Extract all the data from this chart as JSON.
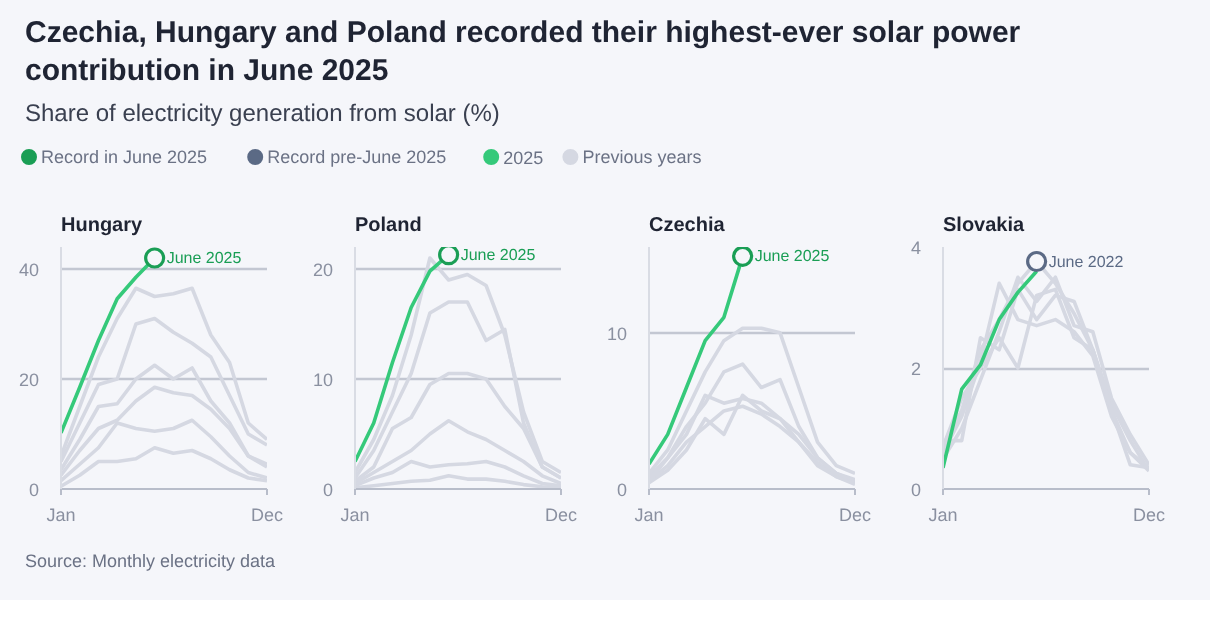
{
  "chart_data": [
    {
      "type": "other",
      "title": "Czechia, Hungary and Poland recorded their highest-ever solar power contribution in June 2025",
      "subtitle": "Share of electricity generation from solar (%)",
      "annotations": [
        "Source: Monthly electricity data"
      ]
    },
    {
      "type": "line",
      "title": "Hungary",
      "categories": [
        "Jan",
        null,
        null,
        null,
        null,
        null,
        null,
        null,
        null,
        null,
        null,
        "Dec"
      ],
      "ylim": [
        0,
        44
      ],
      "yticks": [
        0,
        20,
        40
      ],
      "grid": "y",
      "legend": "top",
      "marker": "none",
      "line_style": "solid",
      "annotations": [
        "June 2025"
      ],
      "series": [
        {
          "name": "Record in June 2025",
          "type": "scatter",
          "marker": "circle",
          "color": "#1a9e55",
          "values": [
            null,
            null,
            null,
            null,
            null,
            42,
            null,
            null,
            null,
            null,
            null,
            null
          ]
        },
        {
          "name": "2025",
          "color": "#35c97a",
          "values": [
            10.2,
            18.5,
            27,
            34.6,
            38.5,
            42,
            null,
            null,
            null,
            null,
            null,
            null
          ]
        },
        {
          "name": "Previous years",
          "color": "#d5d8e2",
          "values": [
            6,
            15,
            24,
            31,
            36.5,
            35,
            35.5,
            36.5,
            28,
            23,
            12,
            9
          ]
        },
        {
          "color": "#d5d8e2",
          "values": [
            5,
            12,
            19,
            20,
            30,
            31,
            28.5,
            26.5,
            24,
            17,
            10,
            8
          ]
        },
        {
          "color": "#d5d8e2",
          "values": [
            3.5,
            9,
            15,
            15.5,
            20,
            22.5,
            20,
            22,
            16,
            12,
            6,
            4.5
          ]
        },
        {
          "color": "#d5d8e2",
          "values": [
            2.5,
            7,
            11,
            12.5,
            16,
            18.5,
            17.5,
            17,
            14.5,
            11,
            6,
            4
          ]
        },
        {
          "color": "#d5d8e2",
          "values": [
            1.5,
            4.5,
            7.5,
            12,
            11,
            10.5,
            11,
            12.5,
            9.5,
            6,
            3,
            2
          ]
        },
        {
          "color": "#d5d8e2",
          "values": [
            0.5,
            2.5,
            5,
            5,
            5.5,
            7.5,
            6.5,
            7,
            5.5,
            3.5,
            2,
            1.5
          ]
        }
      ]
    },
    {
      "type": "line",
      "title": "Poland",
      "categories": [
        "Jan",
        null,
        null,
        null,
        null,
        null,
        null,
        null,
        null,
        null,
        null,
        "Dec"
      ],
      "ylim": [
        0,
        22
      ],
      "yticks": [
        0,
        10,
        20
      ],
      "grid": "y",
      "legend": "top",
      "marker": "none",
      "line_style": "solid",
      "annotations": [
        "June 2025"
      ],
      "series": [
        {
          "name": "Record in June 2025",
          "type": "scatter",
          "marker": "circle",
          "color": "#1a9e55",
          "values": [
            null,
            null,
            null,
            null,
            null,
            21.3,
            null,
            null,
            null,
            null,
            null,
            null
          ]
        },
        {
          "name": "2025",
          "color": "#35c97a",
          "values": [
            2.5,
            6,
            11.5,
            16.5,
            19.8,
            21.3,
            null,
            null,
            null,
            null,
            null,
            null
          ]
        },
        {
          "name": "Previous years",
          "color": "#d5d8e2",
          "values": [
            1.5,
            4.5,
            8.5,
            14,
            21,
            19,
            19.5,
            18.5,
            14,
            7,
            2.5,
            1.5
          ]
        },
        {
          "color": "#d5d8e2",
          "values": [
            1,
            3.5,
            7,
            10.5,
            16,
            17,
            17,
            13.5,
            14.5,
            6,
            2,
            1
          ]
        },
        {
          "color": "#d5d8e2",
          "values": [
            0.7,
            2,
            5.5,
            6.5,
            9.5,
            10.5,
            10.5,
            10,
            7.5,
            5.5,
            2,
            1
          ]
        },
        {
          "color": "#d5d8e2",
          "values": [
            0.5,
            1.5,
            2.5,
            3.5,
            5,
            6.2,
            5.2,
            4.5,
            3.5,
            2.5,
            1.2,
            0.5
          ]
        },
        {
          "color": "#d5d8e2",
          "values": [
            0.3,
            1,
            1.5,
            2.5,
            2,
            2.2,
            2.3,
            2.5,
            2,
            1.2,
            0.5,
            0.3
          ]
        },
        {
          "color": "#d5d8e2",
          "values": [
            0.1,
            0.3,
            0.5,
            0.7,
            0.8,
            1.2,
            0.9,
            0.9,
            0.7,
            0.4,
            0.2,
            0.1
          ]
        }
      ]
    },
    {
      "type": "line",
      "title": "Czechia",
      "categories": [
        "Jan",
        null,
        null,
        null,
        null,
        null,
        null,
        null,
        null,
        null,
        null,
        "Dec"
      ],
      "ylim": [
        0,
        15.5
      ],
      "yticks": [
        0,
        10
      ],
      "grid": "y",
      "legend": "top",
      "marker": "none",
      "line_style": "solid",
      "annotations": [
        "June 2025"
      ],
      "series": [
        {
          "name": "Record in June 2025",
          "type": "scatter",
          "marker": "circle",
          "color": "#1a9e55",
          "values": [
            null,
            null,
            null,
            null,
            null,
            14.9,
            null,
            null,
            null,
            null,
            null,
            null
          ]
        },
        {
          "name": "2025",
          "color": "#35c97a",
          "values": [
            1.6,
            3.5,
            6.5,
            9.5,
            11,
            14.9,
            null,
            null,
            null,
            null,
            null,
            null
          ]
        },
        {
          "name": "Previous years",
          "color": "#d5d8e2",
          "values": [
            1,
            2.5,
            5,
            7.5,
            9.5,
            10.3,
            10.3,
            10,
            6.5,
            3,
            1.5,
            1
          ]
        },
        {
          "color": "#d5d8e2",
          "values": [
            0.8,
            2,
            4,
            5.5,
            7.5,
            8,
            6.5,
            7,
            4,
            2,
            1,
            0.6
          ]
        },
        {
          "color": "#d5d8e2",
          "values": [
            0.5,
            2,
            3.5,
            6,
            5.5,
            5.8,
            5.5,
            4.5,
            3.5,
            2,
            1,
            0.5
          ]
        },
        {
          "color": "#d5d8e2",
          "values": [
            0.5,
            1.5,
            3,
            4,
            5,
            5.3,
            4.8,
            4,
            3,
            1.5,
            0.8,
            0.3
          ]
        },
        {
          "color": "#d5d8e2",
          "values": [
            0.4,
            1.2,
            2.5,
            4.5,
            3.5,
            6,
            5,
            4.5,
            3,
            1.7,
            0.8,
            0.4
          ]
        }
      ]
    },
    {
      "type": "line",
      "title": "Slovakia",
      "categories": [
        "Jan",
        null,
        null,
        null,
        null,
        null,
        null,
        null,
        null,
        null,
        null,
        "Dec"
      ],
      "ylim": [
        0,
        4
      ],
      "yticks": [
        0,
        2,
        4
      ],
      "grid": "y",
      "legend": "top",
      "marker": "none",
      "line_style": "solid",
      "annotations": [
        "June 2022"
      ],
      "series": [
        {
          "name": "Record pre-June 2025",
          "type": "scatter",
          "marker": "circle",
          "color": "#5b6a85",
          "values": [
            null,
            null,
            null,
            null,
            null,
            3.76,
            null,
            null,
            null,
            null,
            null,
            null
          ]
        },
        {
          "name": "2025",
          "color": "#35c97a",
          "values": [
            0.35,
            1.65,
            2.05,
            2.8,
            3.25,
            3.6,
            null,
            null,
            null,
            null,
            null,
            null
          ]
        },
        {
          "name": "Previous years",
          "color": "#d5d8e2",
          "values": [
            0.7,
            1.3,
            2.3,
            2.8,
            3.4,
            3.76,
            3.4,
            2.9,
            2.3,
            1.3,
            0.6,
            0.35
          ]
        },
        {
          "color": "#d5d8e2",
          "values": [
            0.8,
            0.8,
            2.5,
            2.3,
            3.3,
            2.8,
            3.2,
            3.1,
            2.3,
            1.3,
            0.4,
            0.35
          ]
        },
        {
          "color": "#d5d8e2",
          "values": [
            0.6,
            1.2,
            2.1,
            3.4,
            2.8,
            2.7,
            2.8,
            2.6,
            2.2,
            1.2,
            0.6,
            0.3
          ]
        },
        {
          "color": "#d5d8e2",
          "values": [
            0.7,
            1.5,
            2,
            2.5,
            2,
            3.2,
            3.3,
            2.5,
            2.3,
            1.4,
            0.8,
            0.3
          ]
        },
        {
          "color": "#d5d8e2",
          "values": [
            0.5,
            1,
            1.8,
            2.6,
            3.5,
            3.1,
            3.5,
            2.7,
            2.6,
            1.5,
            0.9,
            0.4
          ]
        }
      ]
    }
  ]
}
